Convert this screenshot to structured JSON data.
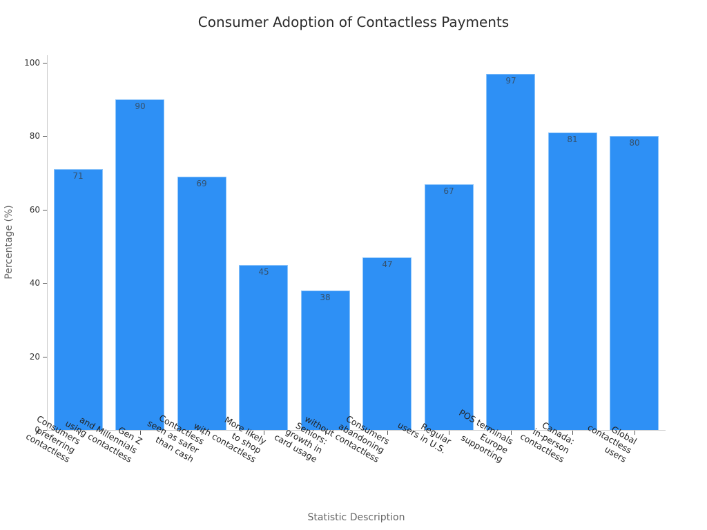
{
  "chart_data": {
    "type": "bar",
    "title": "Consumer Adoption of Contactless Payments",
    "xlabel": "Statistic Description",
    "ylabel": "Percentage (%)",
    "ylim": [
      0,
      100
    ],
    "yticks": [
      0,
      20,
      40,
      60,
      80,
      100
    ],
    "grid": false,
    "legend": null,
    "bar_color": "#2e90f5",
    "categories": [
      "Consumers\npreferring\ncontactless",
      "Gen Z\nand Millennials\nusing contactless",
      "Contactless\nseen as safer\nthan cash",
      "More likely\nto shop\nwith contactless",
      "Seniors:\ngrowth in\ncard usage",
      "Consumers\nabandoning\nwithout contactless",
      "Regular\nusers in U.S.",
      "POS terminals\nEurope\nsupporting",
      "Canada:\nin-person\ncontactless",
      "Global\ncontactless\nusers"
    ],
    "values": [
      71,
      90,
      69,
      45,
      38,
      47,
      67,
      97,
      81,
      80
    ],
    "data_labels": [
      "71",
      "90",
      "69",
      "45",
      "38",
      "47",
      "67",
      "97",
      "81",
      "80"
    ]
  }
}
